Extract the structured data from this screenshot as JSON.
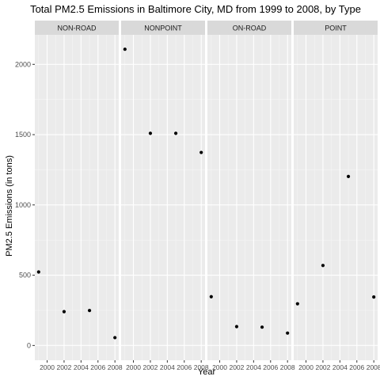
{
  "chart_data": {
    "type": "scatter",
    "title": "Total PM2.5 Emissions in Baltimore City, MD from 1999 to 2008, by Type",
    "xlabel": "Year",
    "ylabel": "PM2.5 Emissions (in tons)",
    "x_ticks": [
      2000,
      2002,
      2004,
      2006,
      2008
    ],
    "y_ticks": [
      0,
      500,
      1000,
      1500,
      2000
    ],
    "xlim": [
      1998.55,
      2008.45
    ],
    "ylim": [
      -105,
      2210
    ],
    "grid": true,
    "legend": "none",
    "point_color": "#000000",
    "panel_background": "#ebebeb",
    "strip_background": "#d9d9d9",
    "panels": [
      {
        "label": "NON-ROAD",
        "points": [
          {
            "x": 1999,
            "y": 522.94
          },
          {
            "x": 2002,
            "y": 240.85
          },
          {
            "x": 2005,
            "y": 248.93
          },
          {
            "x": 2008,
            "y": 55.82
          }
        ]
      },
      {
        "label": "NONPOINT",
        "points": [
          {
            "x": 1999,
            "y": 2107.63
          },
          {
            "x": 2002,
            "y": 1509.5
          },
          {
            "x": 2005,
            "y": 1509.5
          },
          {
            "x": 2008,
            "y": 1373.21
          }
        ]
      },
      {
        "label": "ON-ROAD",
        "points": [
          {
            "x": 1999,
            "y": 346.82
          },
          {
            "x": 2002,
            "y": 134.31
          },
          {
            "x": 2005,
            "y": 130.43
          },
          {
            "x": 2008,
            "y": 88.28
          }
        ]
      },
      {
        "label": "POINT",
        "points": [
          {
            "x": 1999,
            "y": 296.8
          },
          {
            "x": 2002,
            "y": 569.26
          },
          {
            "x": 2005,
            "y": 1202.49
          },
          {
            "x": 2008,
            "y": 344.98
          }
        ]
      }
    ]
  }
}
